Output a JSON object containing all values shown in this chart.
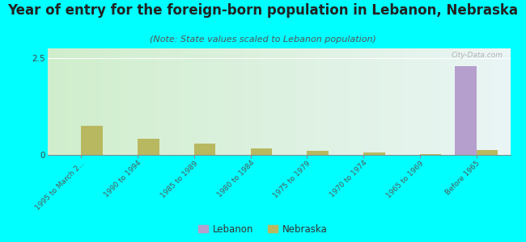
{
  "title": "Year of entry for the foreign-born population in Lebanon, Nebraska",
  "subtitle": "(Note: State values scaled to Lebanon population)",
  "watermark": "City-Data.com",
  "categories": [
    "1995 to March 2...",
    "1990 to 1994",
    "1985 to 1989",
    "1980 to 1984",
    "1975 to 1979",
    "1970 to 1974",
    "1965 to 1969",
    "Before 1965"
  ],
  "lebanon_values": [
    0,
    0,
    0,
    0,
    0,
    0,
    0,
    2.3
  ],
  "nebraska_values": [
    0.75,
    0.42,
    0.3,
    0.16,
    0.1,
    0.06,
    0.03,
    0.13
  ],
  "lebanon_color": "#b59fcc",
  "nebraska_color": "#b8b860",
  "ylim": [
    0,
    2.75
  ],
  "yticks": [
    0,
    2.5
  ],
  "background_color": "#00ffff",
  "title_fontsize": 12,
  "subtitle_fontsize": 8,
  "bar_width": 0.38
}
